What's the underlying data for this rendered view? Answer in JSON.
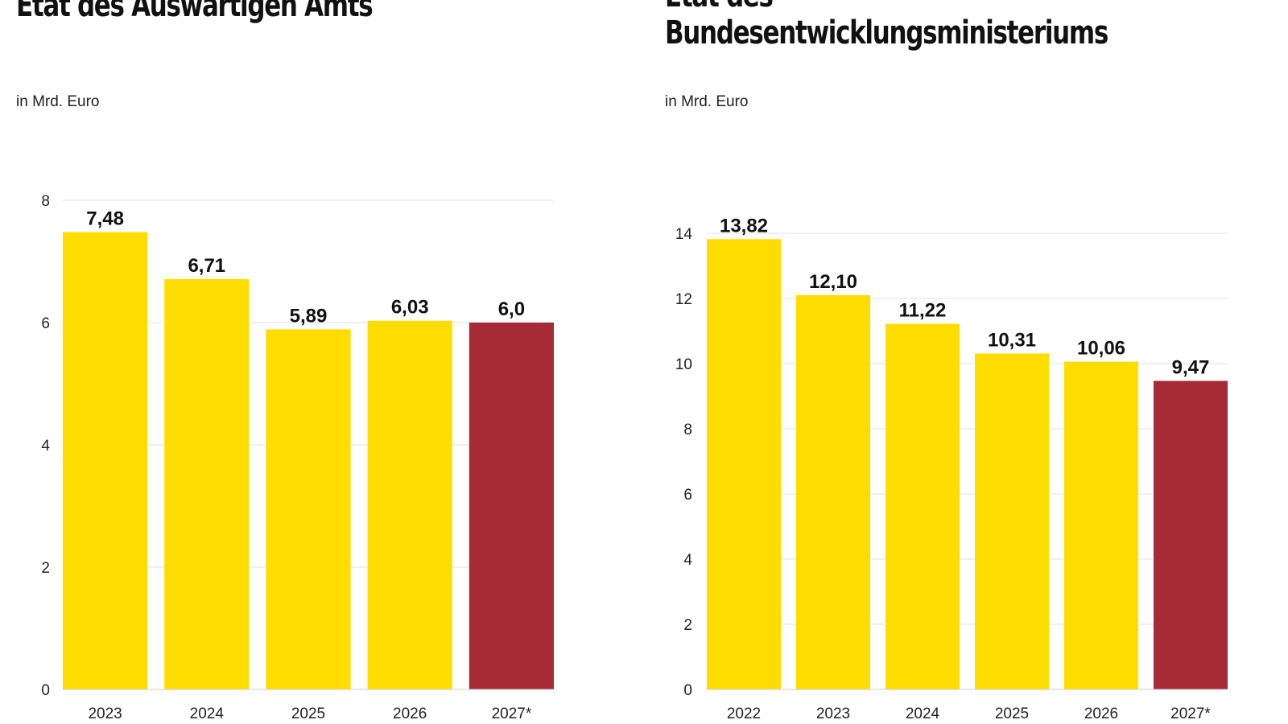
{
  "colors": {
    "bar": "#FFDD00",
    "highlight": "#A62B37",
    "grid": "#E2E2E2"
  },
  "chart_data": [
    {
      "type": "bar",
      "title": "Etat des Auswärtigen Amts",
      "subtitle": "in Mrd. Euro",
      "categories": [
        "2023",
        "2024",
        "2025",
        "2026",
        "2027*"
      ],
      "values": [
        7.48,
        6.71,
        5.89,
        6.03,
        6.0
      ],
      "data_labels": [
        "7,48",
        "6,71",
        "5,89",
        "6,03",
        "6,0"
      ],
      "highlighted": [
        false,
        false,
        false,
        false,
        true
      ],
      "ylim": [
        0,
        8
      ],
      "yticks": [
        0,
        2,
        4,
        6,
        8
      ],
      "grid": true
    },
    {
      "type": "bar",
      "title": "Etat des Bundesentwicklungsministeriums",
      "title_lines": [
        "Etat des",
        "Bundesentwicklungsministeriums"
      ],
      "subtitle": "in Mrd. Euro",
      "categories": [
        "2022",
        "2023",
        "2024",
        "2025",
        "2026",
        "2027*"
      ],
      "values": [
        13.82,
        12.1,
        11.22,
        10.31,
        10.06,
        9.47
      ],
      "data_labels": [
        "13,82",
        "12,10",
        "11,22",
        "10,31",
        "10,06",
        "9,47"
      ],
      "highlighted": [
        false,
        false,
        false,
        false,
        false,
        true
      ],
      "ylim": [
        0,
        14
      ],
      "yticks": [
        0,
        2,
        4,
        6,
        8,
        10,
        12,
        14
      ],
      "grid": true
    }
  ]
}
